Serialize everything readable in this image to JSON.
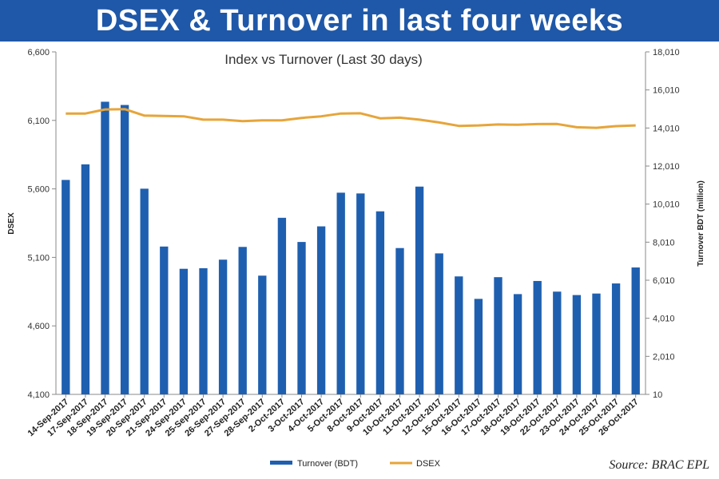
{
  "banner": {
    "title": "DSEX & Turnover in last four weeks"
  },
  "source": "Source: BRAC EPL",
  "colors": {
    "banner": "#1f58a8",
    "bar": "#1f5fb0",
    "line": "#e6a53a",
    "axis": "#888888"
  },
  "chart_data": {
    "type": "bar",
    "title": "Index vs Turnover (Last 30 days)",
    "categories": [
      "14-Sep-2017",
      "17-Sep-2017",
      "18-Sep-2017",
      "19-Sep-2017",
      "20-Sep-2017",
      "21-Sep-2017",
      "24-Sep-2017",
      "25-Sep-2017",
      "26-Sep-2017",
      "27-Sep-2017",
      "28-Sep-2017",
      "2-Oct-2017",
      "3-Oct-2017",
      "4-Oct-2017",
      "5-Oct-2017",
      "8-Oct-2017",
      "9-Oct-2017",
      "10-Oct-2017",
      "11-Oct-2017",
      "12-Oct-2017",
      "15-Oct-2017",
      "16-Oct-2017",
      "17-Oct-2017",
      "18-Oct-2017",
      "19-Oct-2017",
      "22-Oct-2017",
      "23-Oct-2017",
      "24-Oct-2017",
      "25-Oct-2017",
      "26-Oct-2017"
    ],
    "series": [
      {
        "name": "Turnover (BDT)",
        "type": "bar",
        "axis": "right",
        "values": [
          11280,
          12100,
          15390,
          15220,
          10820,
          7780,
          6610,
          6640,
          7090,
          7760,
          6250,
          9290,
          8020,
          8840,
          10610,
          10570,
          9630,
          7700,
          10930,
          7420,
          6210,
          5030,
          6170,
          5280,
          5970,
          5410,
          5230,
          5310,
          5840,
          6680
        ]
      },
      {
        "name": "DSEX",
        "type": "line",
        "axis": "left",
        "values": [
          6150,
          6150,
          6180,
          6182,
          6135,
          6132,
          6130,
          6105,
          6105,
          6095,
          6100,
          6100,
          6118,
          6130,
          6150,
          6152,
          6115,
          6120,
          6105,
          6085,
          6060,
          6063,
          6070,
          6068,
          6073,
          6074,
          6050,
          6046,
          6058,
          6063
        ]
      }
    ],
    "y_left": {
      "label": "DSEX",
      "ticks": [
        4100,
        4600,
        5100,
        5600,
        6100,
        6600
      ],
      "tick_labels": [
        "4,100",
        "4,600",
        "5,100",
        "5,600",
        "6,100",
        "6,600"
      ],
      "lim": [
        4100,
        6600
      ]
    },
    "y_right": {
      "label": "Turnover BDT (million)",
      "ticks": [
        10,
        2010,
        4010,
        6010,
        8010,
        10010,
        12010,
        14010,
        16010,
        18010
      ],
      "tick_labels": [
        "10",
        "2,010",
        "4,010",
        "6,010",
        "8,010",
        "10,010",
        "12,010",
        "14,010",
        "16,010",
        "18,010"
      ],
      "lim": [
        10,
        18010
      ]
    },
    "legend": {
      "placement": "bottom-center",
      "entries": [
        "Turnover (BDT)",
        "DSEX"
      ]
    },
    "grid": false
  }
}
